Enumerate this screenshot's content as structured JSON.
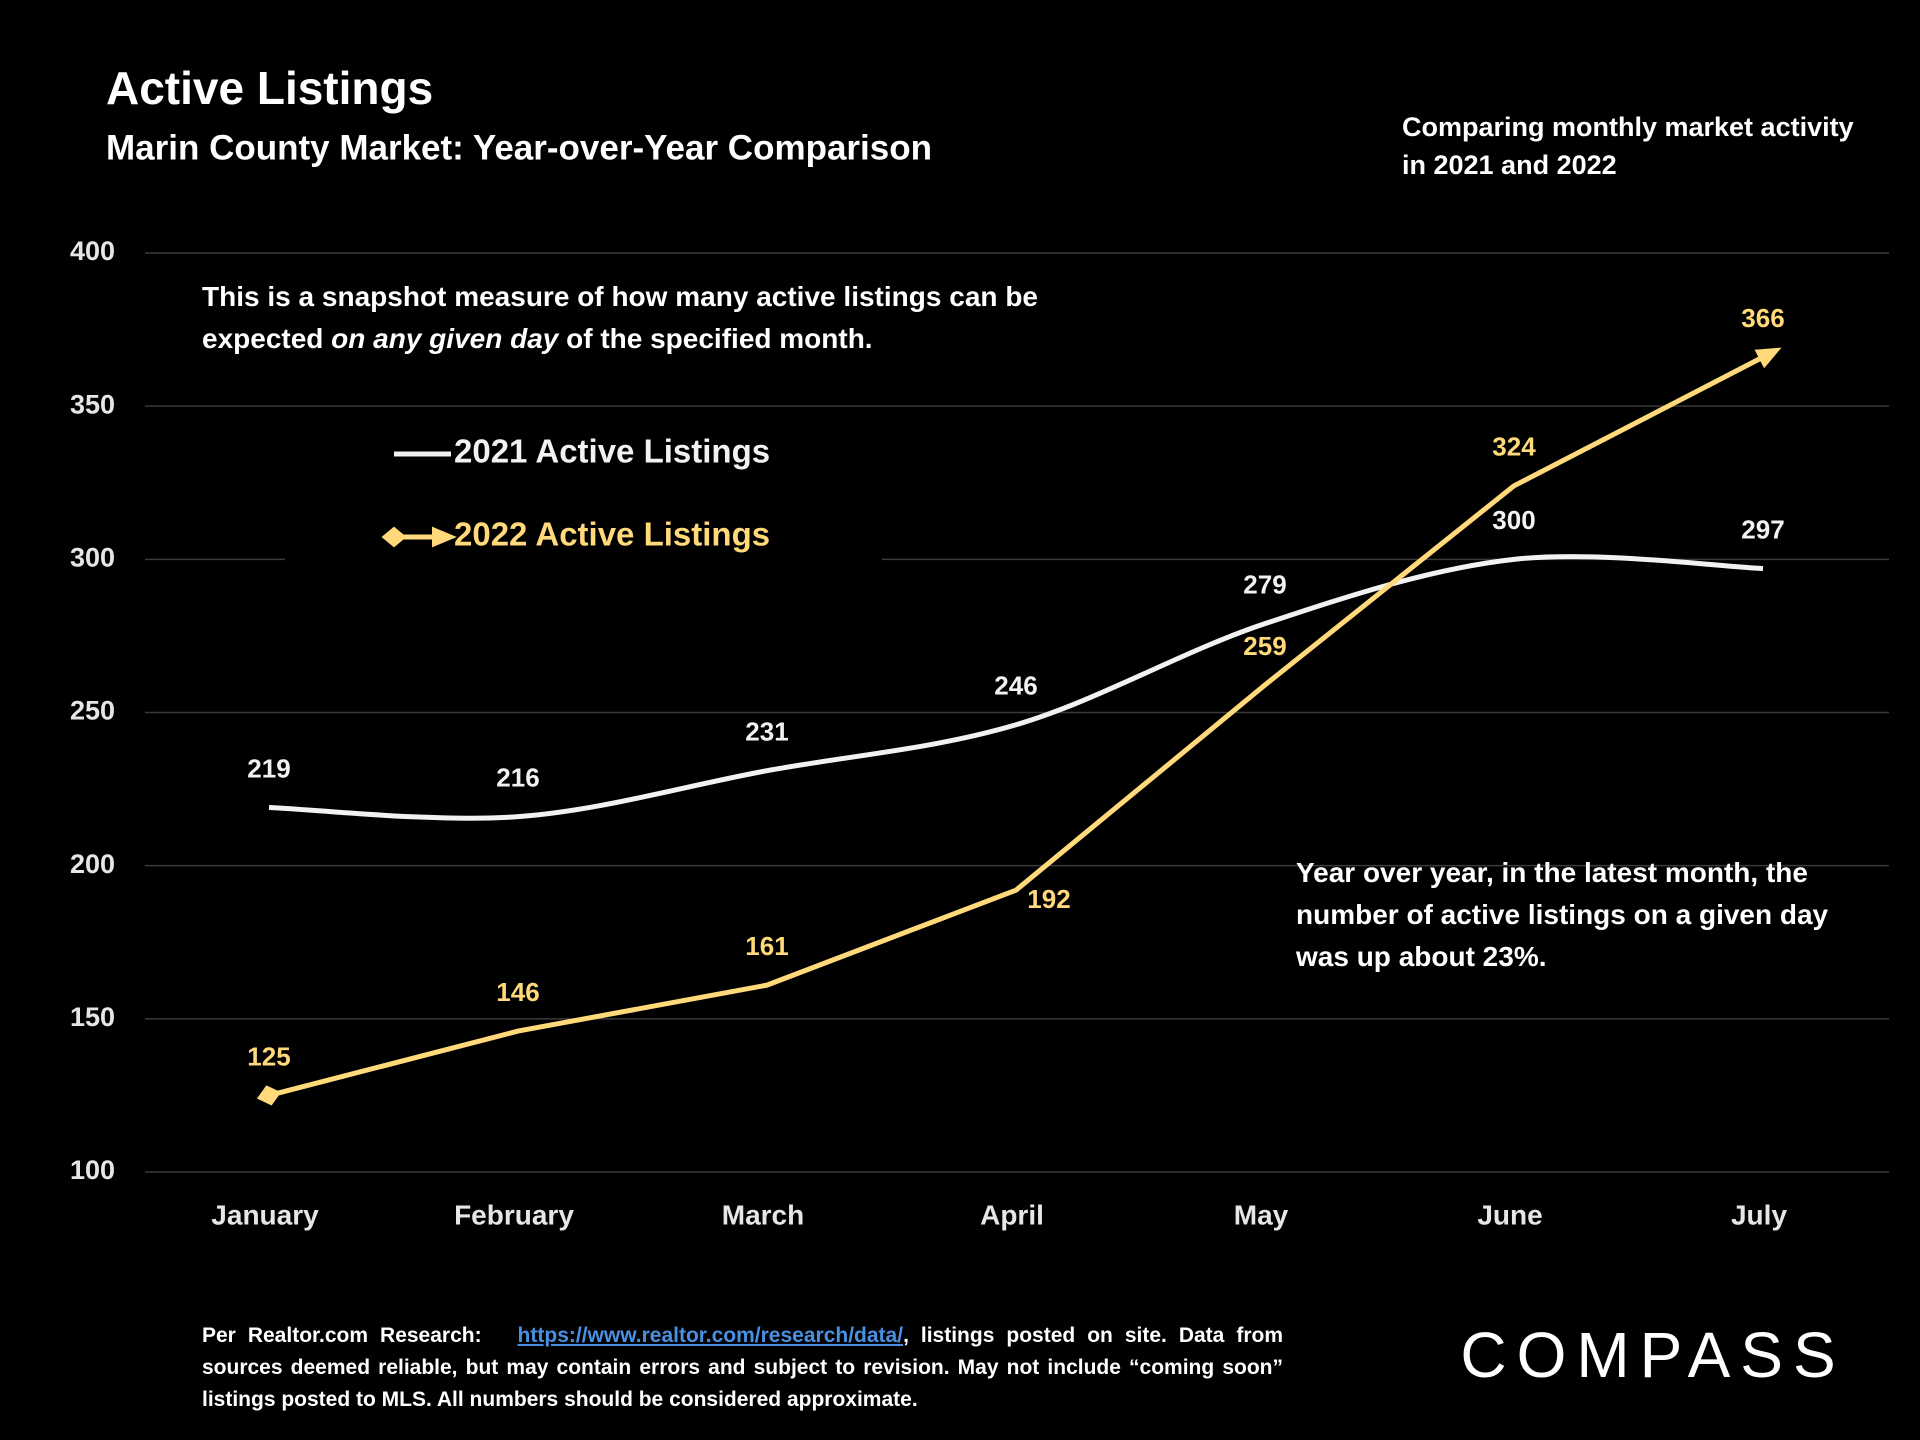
{
  "chart_data": {
    "type": "line",
    "title": "Active Listings",
    "subtitle": "Marin County Market: Year-over-Year Comparison",
    "note": "Comparing monthly market activity in 2021 and 2022",
    "annotation": {
      "before": "This is a snapshot measure of how many active listings can be expected ",
      "emphasis": "on any given day",
      "after": " of the specified month."
    },
    "callout": "Year over year, in the latest month, the number of active listings on a given day was up about 23%.",
    "categories": [
      "January",
      "February",
      "March",
      "April",
      "May",
      "June",
      "July"
    ],
    "series": [
      {
        "name": "2021 Active Listings",
        "color": "#f2f2f2",
        "smooth": true,
        "values": [
          219,
          216,
          231,
          246,
          279,
          300,
          297
        ]
      },
      {
        "name": "2022 Active Listings",
        "color": "#ffd97a",
        "smooth": false,
        "values": [
          125,
          146,
          161,
          192,
          259,
          324,
          366
        ]
      }
    ],
    "ylim": [
      100,
      400
    ],
    "yticks": [
      100,
      150,
      200,
      250,
      300,
      350,
      400
    ],
    "grid": true,
    "source": {
      "prefix": "Per Realtor.com Research:",
      "url": "https://www.realtor.com/research/data/",
      "suffix": ", listings posted on site. Data from sources deemed reliable, but may contain errors and subject to revision. May not include “coming soon” listings posted to MLS. All numbers should be considered approximate."
    },
    "logo": "COMPASS"
  }
}
